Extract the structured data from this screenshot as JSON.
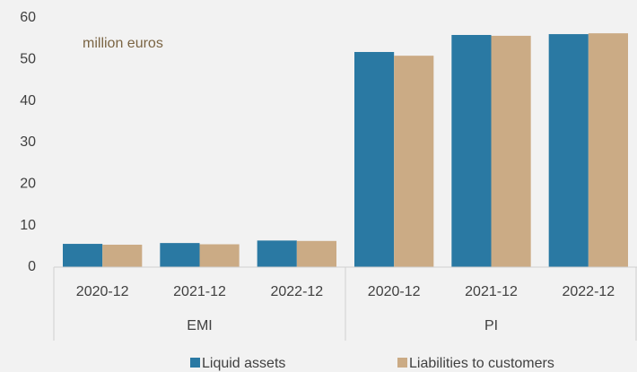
{
  "chart_data": {
    "type": "bar",
    "annotation": "million euros",
    "groups": [
      {
        "name": "EMI",
        "categories": [
          "2020-12",
          "2021-12",
          "2022-12"
        ]
      },
      {
        "name": "PI",
        "categories": [
          "2020-12",
          "2021-12",
          "2022-12"
        ]
      }
    ],
    "series": [
      {
        "name": "Liquid assets",
        "color": "#2a79a3",
        "values": [
          5.6,
          5.8,
          6.4,
          51.8,
          55.9,
          56.1
        ]
      },
      {
        "name": "Liabilities to customers",
        "color": "#cbab85",
        "values": [
          5.4,
          5.5,
          6.3,
          50.9,
          55.7,
          56.3
        ]
      }
    ],
    "ylim": [
      0,
      60
    ],
    "yticks": [
      0,
      10,
      20,
      30,
      40,
      50,
      60
    ],
    "grid": false
  }
}
